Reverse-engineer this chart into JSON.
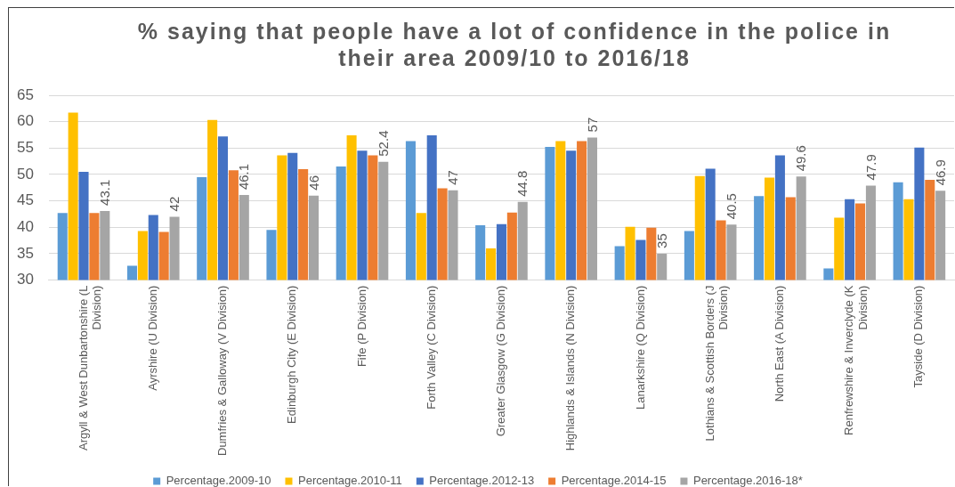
{
  "chart_data": {
    "type": "bar",
    "title": "% saying that people have a lot of confidence in the police in their area 2009/10 to 2016/18",
    "categories": [
      "Argyll & West Dunbartonshire (L Division)",
      "Ayrshire (U Division)",
      "Dumfries & Galloway (V Division)",
      "Edinburgh City (E Division)",
      "Fife (P Division)",
      "Forth Valley (C Division)",
      "Greater Glasgow (G Division)",
      "Highlands & Islands (N Division)",
      "Lanarkshire (Q Division)",
      "Lothians & Scottish Borders (J Division)",
      "North East (A Division)",
      "Renfrewshire & Inverclyde (K Division)",
      "Tayside (D Division)"
    ],
    "series": [
      {
        "name": "Percentage.2009-10",
        "color": "#5b9bd5",
        "values": [
          42.7,
          32.7,
          49.5,
          39.5,
          51.5,
          56.3,
          40.4,
          55.2,
          36.4,
          39.3,
          45.9,
          32.2,
          48.5
        ]
      },
      {
        "name": "Percentage.2010-11",
        "color": "#ffc000",
        "values": [
          61.7,
          39.3,
          60.3,
          53.6,
          57.4,
          42.7,
          36.0,
          56.3,
          40.1,
          49.7,
          49.4,
          41.8,
          45.3
        ]
      },
      {
        "name": "Percentage.2012-13",
        "color": "#4472c4",
        "values": [
          50.5,
          42.3,
          57.2,
          54.1,
          54.5,
          57.4,
          40.6,
          54.5,
          37.6,
          51.1,
          53.6,
          45.3,
          55.1
        ]
      },
      {
        "name": "Percentage.2014-15",
        "color": "#ed7d31",
        "values": [
          42.7,
          39.1,
          50.8,
          51.0,
          53.6,
          47.4,
          42.8,
          56.3,
          39.9,
          41.3,
          45.7,
          44.5,
          49.0
        ]
      },
      {
        "name": "Percentage.2016-18*",
        "color": "#a5a5a5",
        "values": [
          43.1,
          42,
          46.1,
          46,
          52.4,
          47,
          44.8,
          57,
          35,
          40.5,
          49.6,
          47.9,
          46.9
        ],
        "value_labels": [
          "43.1",
          "42",
          "46.1",
          "46",
          "52.4",
          "47",
          "44.8",
          "57",
          "35",
          "40.5",
          "49.6",
          "47.9",
          "46.9"
        ]
      }
    ],
    "ylim": [
      30,
      65
    ],
    "yticks": [
      30,
      35,
      40,
      45,
      50,
      55,
      60,
      65
    ],
    "grid": "y",
    "legend": "bottom"
  }
}
